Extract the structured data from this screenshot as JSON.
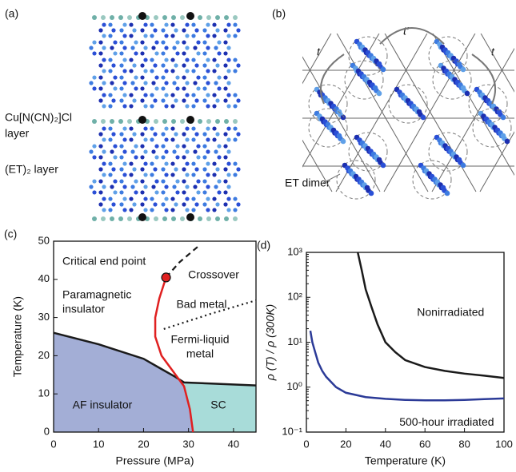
{
  "panels": {
    "a": {
      "label": "(a)",
      "anion_layer": [
        "Cu[N(CN)₂]Cl",
        "layer"
      ],
      "et_layer": "(ET)₂ layer"
    },
    "b": {
      "label": "(b)",
      "t_left": "t",
      "t_prime": "t’",
      "t_right": "t",
      "dimer": "ET dimer"
    }
  },
  "chart_data": [
    {
      "type": "phase",
      "label": "(c)",
      "xlabel": "Pressure (MPa)",
      "ylabel": "Temperature (K)",
      "xlim": [
        0,
        45
      ],
      "ylim": [
        0,
        50
      ],
      "xticks": [
        0,
        10,
        20,
        30,
        40
      ],
      "yticks": [
        0,
        10,
        20,
        30,
        40,
        50
      ],
      "annotations": [
        "Critical end point",
        "Crossover",
        [
          "Paramagnetic",
          "insulator"
        ],
        "Bad metal",
        [
          "Fermi-liquid",
          "metal"
        ],
        "AF insulator",
        "SC"
      ],
      "series": [
        {
          "color": "#1a1a1a",
          "style": "solid",
          "x": [
            0,
            10,
            20,
            24,
            27,
            29,
            35,
            45
          ],
          "values": [
            26,
            23,
            19.2,
            16.5,
            14.5,
            13,
            12.7,
            12.2
          ]
        },
        {
          "color": "#e02020",
          "style": "solid",
          "x": [
            25,
            23.5,
            22.6,
            22.6,
            24,
            26.5,
            29,
            30.3,
            31
          ],
          "values": [
            40.5,
            35,
            30,
            25,
            20,
            16,
            12,
            6,
            0
          ]
        },
        {
          "color": "#1a1a1a",
          "style": "dashed",
          "x": [
            25,
            28,
            32
          ],
          "values": [
            40.5,
            44.5,
            48.5
          ]
        },
        {
          "color": "#1a1a1a",
          "style": "dotted",
          "x": [
            24.5,
            35,
            45
          ],
          "values": [
            27,
            31,
            34.5
          ]
        }
      ],
      "marker": {
        "x": 25,
        "y": 40.5,
        "color": "#e02020"
      }
    },
    {
      "type": "line",
      "label": "(d)",
      "xlabel": "Temperature (K)",
      "ylabel": "ρ (T) / ρ (300K)",
      "log_y": true,
      "xlim": [
        0,
        100
      ],
      "ylim": [
        0.1,
        1000
      ],
      "xticks": [
        0,
        20,
        40,
        60,
        80,
        100
      ],
      "yticks": [
        {
          "value": 0.1,
          "label": "10⁻¹"
        },
        {
          "value": 1,
          "label": "10⁰"
        },
        {
          "value": 10,
          "label": "10¹"
        },
        {
          "value": 100,
          "label": "10²"
        },
        {
          "value": 1000,
          "label": "10³"
        }
      ],
      "series": [
        {
          "name": "Nonirradiated",
          "color": "#1a1a1a",
          "x": [
            26,
            28,
            30,
            33,
            36,
            40,
            45,
            50,
            60,
            70,
            80,
            90,
            100
          ],
          "values": [
            1000,
            400,
            150,
            60,
            25,
            10,
            6,
            4,
            2.8,
            2.3,
            2,
            1.8,
            1.6
          ]
        },
        {
          "name": "500-hour irradiated",
          "color": "#2b3a97",
          "x": [
            2,
            3,
            4,
            6,
            8,
            10,
            15,
            20,
            30,
            40,
            50,
            60,
            70,
            80,
            90,
            100
          ],
          "values": [
            18,
            10,
            7,
            3.5,
            2.3,
            1.7,
            1,
            0.75,
            0.6,
            0.55,
            0.52,
            0.51,
            0.51,
            0.52,
            0.54,
            0.56
          ]
        }
      ]
    }
  ]
}
